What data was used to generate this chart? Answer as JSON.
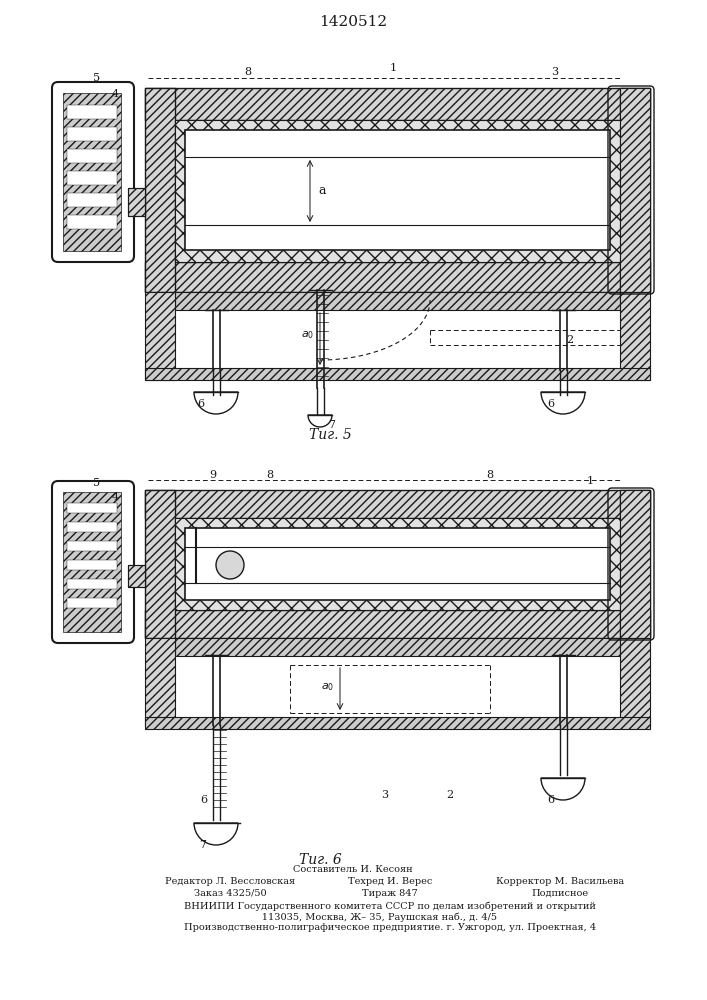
{
  "title": "1420512",
  "fig5_label": "Τиг. 5",
  "fig6_label": "Τиг. 6",
  "footer_lines": [
    "Составитель И. Кесоян",
    "Редактор Л. Вессловская     Техред И. Верес          Корректор М. Васильева",
    "Заказ 4325/50            Тираж 847                 Подписное",
    "ВНИИПИ Государственного комитета СССР по делам изобретений и открытий",
    "      113035, Москва, Ж– 35, Раушская наб., д. 4/5",
    "Производственно-полиграфическое предприятие. г. Ужгород, ул. Проектная, 4"
  ],
  "bg_color": "#ffffff",
  "line_color": "#1a1a1a"
}
